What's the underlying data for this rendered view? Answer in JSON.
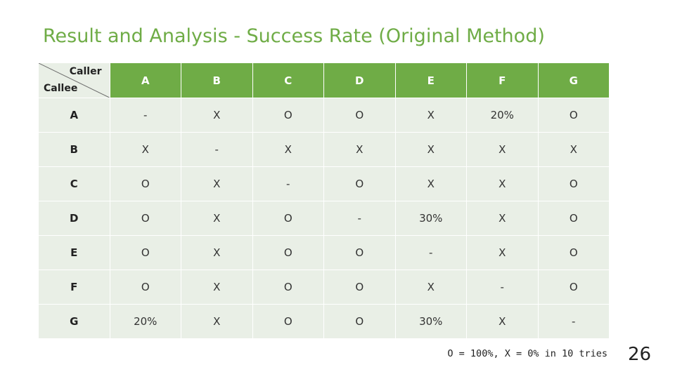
{
  "title": "Result and Analysis - Success Rate (Original Method)",
  "table": {
    "corner": {
      "caller_label": "Caller",
      "callee_label": "Callee"
    },
    "columns": [
      "A",
      "B",
      "C",
      "D",
      "E",
      "F",
      "G"
    ],
    "rows": [
      {
        "label": "A",
        "cells": [
          "-",
          "X",
          "O",
          "O",
          "X",
          "20%",
          "O"
        ]
      },
      {
        "label": "B",
        "cells": [
          "X",
          "-",
          "X",
          "X",
          "X",
          "X",
          "X"
        ]
      },
      {
        "label": "C",
        "cells": [
          "O",
          "X",
          "-",
          "O",
          "X",
          "X",
          "O"
        ]
      },
      {
        "label": "D",
        "cells": [
          "O",
          "X",
          "O",
          "-",
          "30%",
          "X",
          "O"
        ]
      },
      {
        "label": "E",
        "cells": [
          "O",
          "X",
          "O",
          "O",
          "-",
          "X",
          "O"
        ]
      },
      {
        "label": "F",
        "cells": [
          "O",
          "X",
          "O",
          "O",
          "X",
          "-",
          "O"
        ]
      },
      {
        "label": "G",
        "cells": [
          "20%",
          "X",
          "O",
          "O",
          "30%",
          "X",
          "-"
        ]
      }
    ]
  },
  "legend": "O = 100%, X = 0% in 10 tries",
  "page_number": "26",
  "colors": {
    "accent": "#6fac46",
    "cell_background": "#e9efe6",
    "header_text": "#ffffff"
  }
}
